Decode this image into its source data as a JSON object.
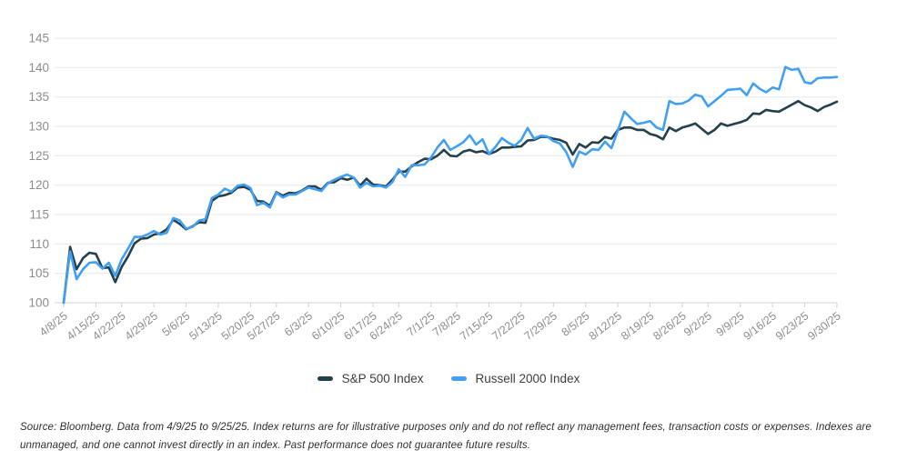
{
  "legend": {
    "items": [
      {
        "label": "S&P 500 Index",
        "color": "#24404c"
      },
      {
        "label": "Russell 2000 Index",
        "color": "#42a0f2"
      }
    ]
  },
  "footnote": "Source: Bloomberg. Data from 4/9/25 to 9/25/25. Index returns are for illustrative purposes only and do not reflect any management fees, transaction costs or expenses. Indexes are unmanaged, and one cannot invest directly in an index. Past performance does not guarantee future results.",
  "chart_data": {
    "type": "line",
    "title": "",
    "xlabel": "",
    "ylabel": "",
    "ylim": [
      100,
      145
    ],
    "y_ticks": [
      100,
      105,
      110,
      115,
      120,
      125,
      130,
      135,
      140,
      145
    ],
    "grid": true,
    "legend_position": "bottom",
    "x_tick_labels": [
      "4/8/25",
      "4/15/25",
      "4/22/25",
      "4/29/25",
      "5/6/25",
      "5/13/25",
      "5/20/25",
      "5/27/25",
      "6/3/25",
      "6/10/25",
      "6/17/25",
      "6/24/25",
      "7/1/25",
      "7/8/25",
      "7/15/25",
      "7/22/25",
      "7/29/25",
      "8/5/25",
      "8/12/25",
      "8/19/25",
      "8/26/25",
      "9/2/25",
      "9/9/25",
      "9/16/25",
      "9/23/25",
      "9/30/25"
    ],
    "x_tick_indices": [
      0,
      5,
      9,
      14,
      19,
      24,
      29,
      33,
      38,
      43,
      48,
      52,
      57,
      61,
      66,
      71,
      76,
      81,
      86,
      91,
      96,
      100,
      105,
      110,
      115,
      120
    ],
    "x": [
      "4/8",
      "4/9",
      "4/10",
      "4/11",
      "4/14",
      "4/15",
      "4/16",
      "4/17",
      "4/21",
      "4/22",
      "4/23",
      "4/24",
      "4/25",
      "4/28",
      "4/29",
      "4/30",
      "5/1",
      "5/2",
      "5/5",
      "5/6",
      "5/7",
      "5/8",
      "5/9",
      "5/12",
      "5/13",
      "5/14",
      "5/15",
      "5/16",
      "5/19",
      "5/20",
      "5/21",
      "5/22",
      "5/23",
      "5/27",
      "5/28",
      "5/29",
      "5/30",
      "6/2",
      "6/3",
      "6/4",
      "6/5",
      "6/6",
      "6/9",
      "6/10",
      "6/11",
      "6/12",
      "6/13",
      "6/16",
      "6/17",
      "6/18",
      "6/20",
      "6/23",
      "6/24",
      "6/25",
      "6/26",
      "6/27",
      "6/30",
      "7/1",
      "7/2",
      "7/3",
      "7/7",
      "7/8",
      "7/9",
      "7/10",
      "7/11",
      "7/14",
      "7/15",
      "7/16",
      "7/17",
      "7/18",
      "7/21",
      "7/22",
      "7/23",
      "7/24",
      "7/25",
      "7/28",
      "7/29",
      "7/30",
      "7/31",
      "8/1",
      "8/4",
      "8/5",
      "8/6",
      "8/7",
      "8/8",
      "8/11",
      "8/12",
      "8/13",
      "8/14",
      "8/15",
      "8/18",
      "8/19",
      "8/20",
      "8/21",
      "8/22",
      "8/25",
      "8/26",
      "8/27",
      "8/28",
      "8/29",
      "9/2",
      "9/3",
      "9/4",
      "9/5",
      "9/8",
      "9/9",
      "9/10",
      "9/11",
      "9/12",
      "9/15",
      "9/16",
      "9/17",
      "9/18",
      "9/19",
      "9/22",
      "9/23",
      "9/24",
      "9/25",
      "9/26",
      "9/29",
      "9/30"
    ],
    "series": [
      {
        "name": "S&P 500 Index",
        "color": "#24404c",
        "values": [
          100.0,
          109.5,
          105.7,
          107.6,
          108.5,
          108.3,
          105.9,
          106.0,
          103.5,
          106.1,
          107.9,
          110.1,
          110.9,
          111.0,
          111.6,
          111.8,
          112.5,
          114.1,
          113.4,
          112.5,
          113.0,
          113.7,
          113.6,
          117.3,
          118.1,
          118.3,
          118.7,
          119.6,
          119.7,
          119.2,
          117.3,
          117.2,
          116.5,
          118.8,
          118.2,
          118.7,
          118.6,
          119.1,
          119.8,
          119.8,
          119.2,
          120.4,
          120.5,
          121.2,
          120.9,
          121.3,
          119.9,
          121.1,
          120.1,
          120.0,
          119.8,
          120.9,
          122.3,
          122.3,
          123.2,
          123.9,
          124.5,
          124.4,
          125.0,
          126.0,
          125.0,
          124.9,
          125.7,
          126.0,
          125.6,
          125.8,
          125.3,
          125.7,
          126.4,
          126.4,
          126.5,
          126.6,
          127.6,
          127.7,
          128.2,
          128.2,
          127.9,
          127.7,
          127.2,
          125.2,
          127.0,
          126.4,
          127.3,
          127.2,
          128.2,
          127.9,
          129.4,
          129.8,
          129.8,
          129.4,
          129.4,
          128.7,
          128.4,
          127.8,
          129.8,
          129.2,
          129.8,
          130.1,
          130.5,
          129.6,
          128.7,
          129.4,
          130.5,
          130.1,
          130.4,
          130.7,
          131.1,
          132.2,
          132.1,
          132.8,
          132.6,
          132.5,
          133.1,
          133.7,
          134.3,
          133.6,
          133.2,
          132.6,
          133.3,
          133.7,
          134.2
        ]
      },
      {
        "name": "Russell 2000 Index",
        "color": "#42a0f2",
        "values": [
          100.0,
          108.7,
          104.0,
          105.7,
          106.8,
          106.9,
          105.8,
          106.8,
          104.6,
          107.4,
          109.2,
          111.2,
          111.2,
          111.6,
          112.2,
          111.6,
          111.9,
          114.4,
          114.0,
          112.6,
          112.9,
          114.0,
          114.2,
          117.8,
          118.4,
          119.4,
          118.9,
          119.9,
          120.1,
          119.5,
          116.6,
          117.0,
          116.2,
          118.7,
          117.9,
          118.4,
          118.4,
          119.0,
          119.6,
          119.3,
          119.0,
          120.3,
          120.9,
          121.4,
          121.8,
          121.3,
          119.6,
          120.4,
          119.8,
          119.9,
          119.6,
          120.5,
          122.7,
          121.4,
          123.4,
          123.4,
          123.5,
          124.7,
          126.4,
          127.7,
          126.0,
          126.6,
          127.3,
          128.5,
          126.9,
          127.8,
          125.3,
          126.5,
          128.0,
          127.2,
          126.7,
          127.7,
          129.7,
          127.9,
          128.4,
          128.3,
          127.5,
          127.1,
          125.6,
          123.1,
          125.7,
          125.2,
          126.1,
          126.0,
          127.4,
          126.3,
          129.3,
          132.5,
          131.4,
          130.4,
          130.6,
          130.9,
          129.8,
          129.4,
          134.3,
          133.8,
          133.9,
          134.4,
          135.4,
          135.1,
          133.4,
          134.3,
          135.2,
          136.2,
          136.3,
          136.4,
          135.3,
          137.3,
          136.4,
          135.8,
          136.6,
          136.3,
          140.1,
          139.6,
          139.8,
          137.5,
          137.3,
          138.2,
          138.3,
          138.3,
          138.4
        ]
      }
    ]
  }
}
